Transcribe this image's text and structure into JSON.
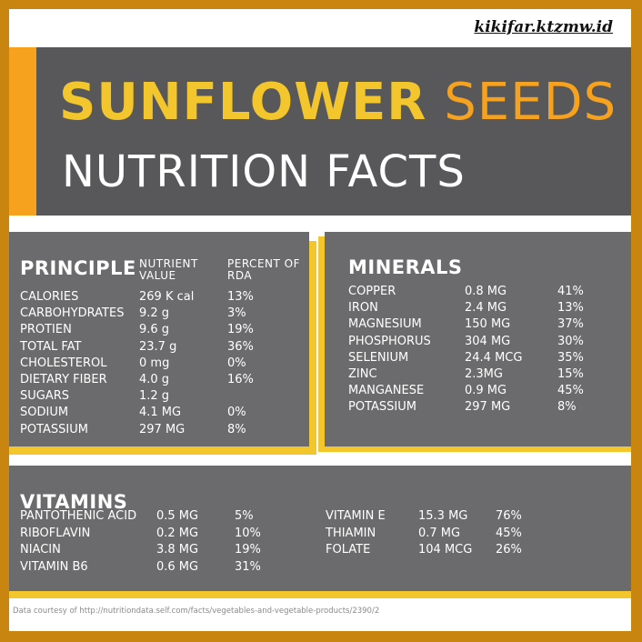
{
  "watermark": "kikifar.ktzmw.id",
  "header": {
    "title_bold": "SUNFLOWER",
    "title_light": "SEEDS",
    "subtitle": "NUTRITION FACTS"
  },
  "principle": {
    "title": "PRINCIPLE",
    "col_value": "NUTRIENT VALUE",
    "col_rda": "PERCENT OF RDA",
    "rows": [
      {
        "name": "CALORIES",
        "value": "269 K cal",
        "rda": "13%"
      },
      {
        "name": "CARBOHYDRATES",
        "value": "9.2 g",
        "rda": "3%"
      },
      {
        "name": "PROTIEN",
        "value": "9.6 g",
        "rda": "19%"
      },
      {
        "name": "TOTAL FAT",
        "value": "23.7 g",
        "rda": "36%"
      },
      {
        "name": "CHOLESTEROL",
        "value": "0 mg",
        "rda": "0%"
      },
      {
        "name": "DIETARY FIBER",
        "value": "4.0 g",
        "rda": "16%"
      },
      {
        "name": "SUGARS",
        "value": "1.2 g",
        "rda": ""
      },
      {
        "name": "SODIUM",
        "value": "4.1 MG",
        "rda": "0%"
      },
      {
        "name": "POTASSIUM",
        "value": "297 MG",
        "rda": "8%"
      }
    ]
  },
  "minerals": {
    "title": "MINERALS",
    "rows": [
      {
        "name": "COPPER",
        "value": "0.8 MG",
        "rda": "41%"
      },
      {
        "name": "IRON",
        "value": "2.4 MG",
        "rda": "13%"
      },
      {
        "name": "MAGNESIUM",
        "value": "150 MG",
        "rda": "37%"
      },
      {
        "name": "PHOSPHORUS",
        "value": "304 MG",
        "rda": "30%"
      },
      {
        "name": "SELENIUM",
        "value": "24.4 MCG",
        "rda": "35%"
      },
      {
        "name": "ZINC",
        "value": "2.3MG",
        "rda": "15%"
      },
      {
        "name": "MANGANESE",
        "value": "0.9 MG",
        "rda": "45%"
      },
      {
        "name": "POTASSIUM",
        "value": "297 MG",
        "rda": "8%"
      }
    ]
  },
  "vitamins": {
    "title": "VITAMINS",
    "left": [
      {
        "name": "PANTOTHENIC ACID",
        "value": "0.5 MG",
        "rda": "5%"
      },
      {
        "name": "RIBOFLAVIN",
        "value": "0.2 MG",
        "rda": "10%"
      },
      {
        "name": "NIACIN",
        "value": "3.8 MG",
        "rda": "19%"
      },
      {
        "name": "VITAMIN B6",
        "value": "0.6 MG",
        "rda": "31%"
      }
    ],
    "right": [
      {
        "name": "VITAMIN E",
        "value": "15.3 MG",
        "rda": "76%"
      },
      {
        "name": "THIAMIN",
        "value": "0.7 MG",
        "rda": "45%"
      },
      {
        "name": "FOLATE",
        "value": "104 MCG",
        "rda": "26%"
      }
    ]
  },
  "credit": "Data courtesy of http://nutritiondata.self.com/facts/vegetables-and-vegetable-products/2390/2",
  "colors": {
    "frame": "#c8850f",
    "dark_gray": "#58585a",
    "panel_gray": "#6b6b6d",
    "yellow": "#f2c62c",
    "orange": "#f6a21f"
  }
}
